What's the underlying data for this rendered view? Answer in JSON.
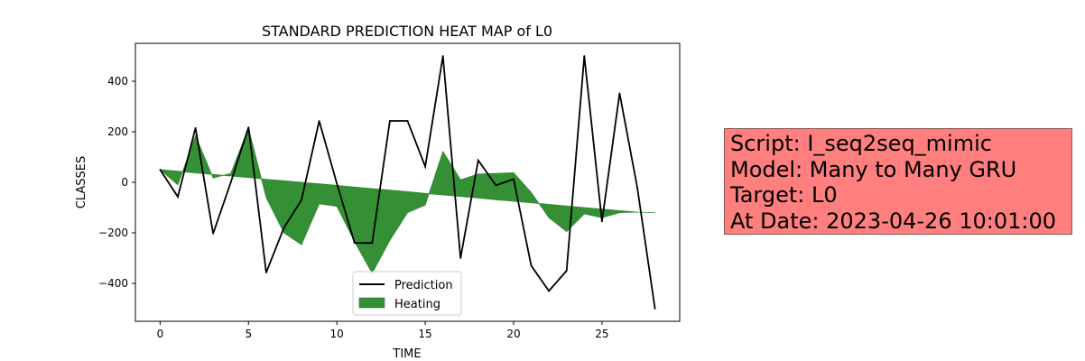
{
  "chart_data": {
    "type": "line",
    "title": "STANDARD PREDICTION HEAT MAP of L0",
    "xlabel": "TIME",
    "ylabel": "CLASSES",
    "xlim": [
      -1.4,
      29.4
    ],
    "ylim": [
      -550,
      550
    ],
    "xticks": [
      0,
      5,
      10,
      15,
      20,
      25
    ],
    "yticks": [
      -400,
      -200,
      0,
      200,
      400
    ],
    "legend_position": "lower center",
    "grid": false,
    "colors": {
      "prediction": "#000000",
      "heating": "#2e8b2e"
    },
    "legend": {
      "prediction": "Prediction",
      "heating": "Heating"
    },
    "x": [
      0,
      1,
      2,
      3,
      4,
      5,
      6,
      7,
      8,
      9,
      10,
      11,
      12,
      13,
      14,
      15,
      16,
      17,
      18,
      19,
      20,
      21,
      22,
      23,
      24,
      25,
      26,
      27,
      28
    ],
    "prediction": [
      50,
      -57,
      215,
      -203,
      0,
      218,
      -357,
      -180,
      -70,
      243,
      -5,
      -240,
      -240,
      243,
      243,
      62,
      500,
      -300,
      87,
      -12,
      13,
      -330,
      -430,
      -350,
      500,
      -155,
      352,
      -20,
      -500
    ],
    "heating_base": [
      50,
      44,
      37,
      31,
      25,
      19,
      12,
      6,
      0,
      -6,
      -12,
      -19,
      -25,
      -31,
      -37,
      -44,
      -50,
      -56,
      -62,
      -69,
      -75,
      -81,
      -87,
      -94,
      -100,
      -106,
      -112,
      -118,
      -120
    ],
    "heating_top": [
      50,
      -10,
      185,
      17,
      35,
      215,
      -60,
      -200,
      -247,
      -85,
      -95,
      -235,
      -360,
      -230,
      -120,
      -90,
      122,
      10,
      33,
      35,
      38,
      -40,
      -140,
      -195,
      -125,
      -140,
      -120,
      -118,
      -120
    ]
  },
  "info": {
    "line1": "Script: I_seq2seq_mimic",
    "line2": "Model: Many to Many GRU",
    "line3": "Target: L0",
    "line4": "At Date: 2023-04-26 10:01:00"
  }
}
